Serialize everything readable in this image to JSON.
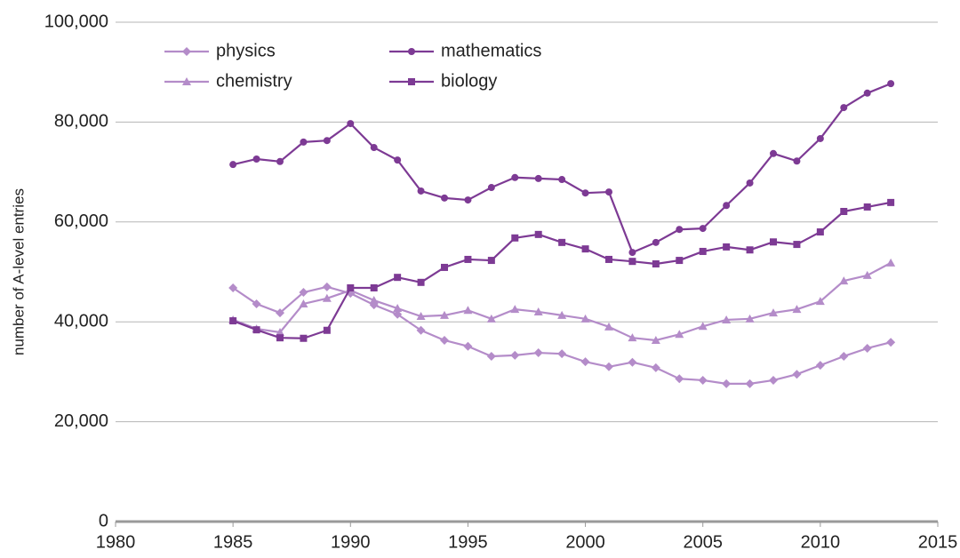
{
  "chart_data": {
    "type": "line",
    "y_label": "number of A-level entries",
    "x": [
      1985,
      1986,
      1987,
      1988,
      1989,
      1990,
      1991,
      1992,
      1993,
      1994,
      1995,
      1996,
      1997,
      1998,
      1999,
      2000,
      2001,
      2002,
      2003,
      2004,
      2005,
      2006,
      2007,
      2008,
      2009,
      2010,
      2011,
      2012,
      2013
    ],
    "series": [
      {
        "name": "physics",
        "color": "#b48cc9",
        "marker": "diamond",
        "values": [
          46800,
          43600,
          41800,
          45900,
          47000,
          45700,
          43400,
          41500,
          38300,
          36300,
          35100,
          33100,
          33300,
          33800,
          33600,
          32000,
          31000,
          31900,
          30800,
          28600,
          28300,
          27600,
          27600,
          28300,
          29500,
          31300,
          33100,
          34700,
          35900
        ]
      },
      {
        "name": "mathematics",
        "color": "#7d3a94",
        "marker": "circle",
        "values": [
          71500,
          72600,
          72100,
          76000,
          76300,
          79700,
          74900,
          72400,
          66200,
          64800,
          64400,
          66900,
          68900,
          68700,
          68500,
          65800,
          66000,
          53900,
          55900,
          58500,
          58700,
          63300,
          67800,
          73700,
          72200,
          76700,
          82900,
          85800,
          87700
        ]
      },
      {
        "name": "chemistry",
        "color": "#b48cc9",
        "marker": "triangle",
        "values": [
          40400,
          38600,
          37900,
          43600,
          44700,
          46300,
          44300,
          42700,
          41100,
          41300,
          42300,
          40600,
          42500,
          42000,
          41300,
          40600,
          39000,
          36800,
          36300,
          37500,
          39100,
          40400,
          40600,
          41800,
          42500,
          44100,
          48200,
          49300,
          51800
        ]
      },
      {
        "name": "biology",
        "color": "#7d3a94",
        "marker": "square",
        "values": [
          40200,
          38400,
          36800,
          36700,
          38300,
          46800,
          46800,
          48900,
          47900,
          50900,
          52500,
          52300,
          56800,
          57500,
          55900,
          54600,
          52500,
          52100,
          51600,
          52300,
          54100,
          55000,
          54400,
          56000,
          55500,
          58000,
          62100,
          63000,
          63900
        ]
      }
    ],
    "xlim": [
      1980,
      2015
    ],
    "xticks": [
      1980,
      1985,
      1990,
      1995,
      2000,
      2005,
      2010,
      2015
    ],
    "ylim": [
      0,
      100000
    ],
    "yticks": [
      0,
      {
        "value": 20000,
        "label": "20,000"
      },
      {
        "value": 40000,
        "label": "40,000"
      },
      {
        "value": 60000,
        "label": "60,000"
      },
      {
        "value": 80000,
        "label": "80,000"
      },
      {
        "value": 100000,
        "label": "100,000"
      }
    ],
    "grid": true,
    "legend": "top-left"
  }
}
